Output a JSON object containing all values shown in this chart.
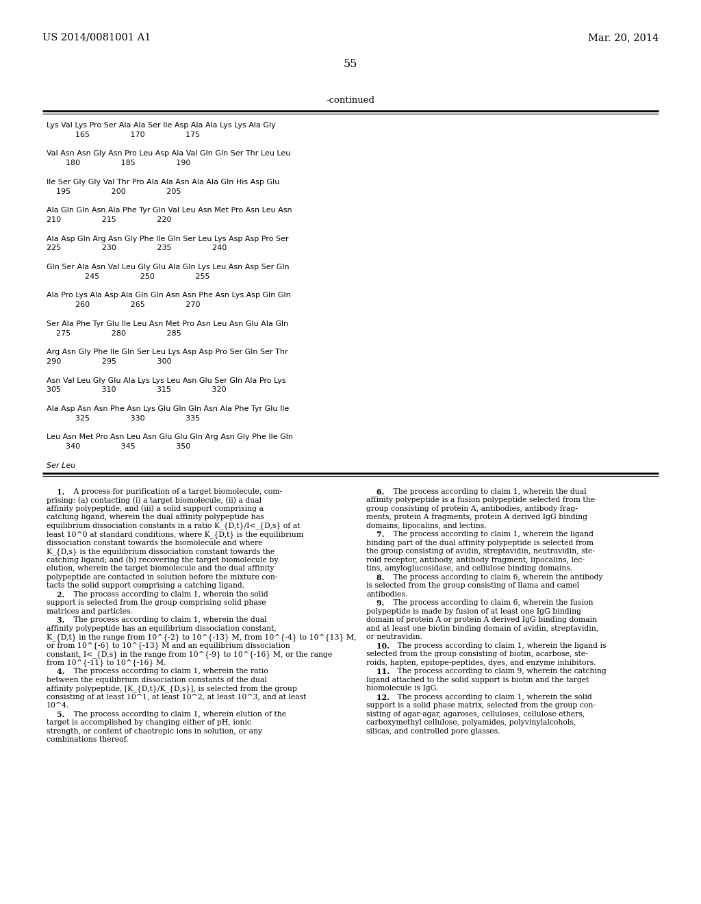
{
  "header_left": "US 2014/0081001 A1",
  "header_right": "Mar. 20, 2014",
  "page_number": "55",
  "continued_label": "-continued",
  "background_color": "#ffffff",
  "text_color": "#000000",
  "sequence_data": [
    [
      "Lys Val Lys Pro Ser Ala Ala Ser Ile Asp Ala Ala Lys Lys Ala Gly",
      false
    ],
    [
      "            165                 170                 175",
      false
    ],
    [
      "",
      false
    ],
    [
      "Val Asn Asn Gly Asn Pro Leu Asp Ala Val Gln Gln Ser Thr Leu Leu",
      false
    ],
    [
      "        180                 185                 190",
      false
    ],
    [
      "",
      false
    ],
    [
      "Ile Ser Gly Gly Val Thr Pro Ala Ala Asn Ala Ala Gln His Asp Glu",
      false
    ],
    [
      "    195                 200                 205",
      false
    ],
    [
      "",
      false
    ],
    [
      "Ala Gln Gln Asn Ala Phe Tyr Gln Val Leu Asn Met Pro Asn Leu Asn",
      false
    ],
    [
      "210                 215                 220",
      false
    ],
    [
      "",
      false
    ],
    [
      "Ala Asp Gln Arg Asn Gly Phe Ile Gln Ser Leu Lys Asp Asp Pro Ser",
      false
    ],
    [
      "225                 230                 235                 240",
      false
    ],
    [
      "",
      false
    ],
    [
      "Gln Ser Ala Asn Val Leu Gly Glu Ala Gln Lys Leu Asn Asp Ser Gln",
      false
    ],
    [
      "                245                 250                 255",
      false
    ],
    [
      "",
      false
    ],
    [
      "Ala Pro Lys Ala Asp Ala Gln Gln Asn Asn Phe Asn Lys Asp Gln Gln",
      false
    ],
    [
      "            260                 265                 270",
      false
    ],
    [
      "",
      false
    ],
    [
      "Ser Ala Phe Tyr Glu Ile Leu Asn Met Pro Asn Leu Asn Glu Ala Gln",
      false
    ],
    [
      "    275                 280                 285",
      false
    ],
    [
      "",
      false
    ],
    [
      "Arg Asn Gly Phe Ile Gln Ser Leu Lys Asp Asp Pro Ser Gln Ser Thr",
      false
    ],
    [
      "290                 295                 300",
      false
    ],
    [
      "",
      false
    ],
    [
      "Asn Val Leu Gly Glu Ala Lys Lys Leu Asn Glu Ser Gln Ala Pro Lys",
      false
    ],
    [
      "305                 310                 315                 320",
      false
    ],
    [
      "",
      false
    ],
    [
      "Ala Asp Asn Asn Phe Asn Lys Glu Gln Gln Asn Ala Phe Tyr Glu Ile",
      false
    ],
    [
      "            325                 330                 335",
      false
    ],
    [
      "",
      false
    ],
    [
      "Leu Asn Met Pro Asn Leu Asn Glu Glu Gln Arg Asn Gly Phe Ile Gln",
      false
    ],
    [
      "        340                 345                 350",
      false
    ],
    [
      "",
      false
    ],
    [
      "Ser Leu",
      true
    ]
  ],
  "claims_col1": [
    "    1. A process for purification of a target biomolecule, com-",
    "prising: (a) contacting (i) a target biomolecule, (ii) a dual",
    "affinity polypeptide, and (iii) a solid support comprising a",
    "catching ligand, wherein the dual affinity polypeptide has",
    "equilibrium dissociation constants in a ratio K_{D,t}/I<_{D,s} of at",
    "least 10^0 at standard conditions, where K_{D,t} is the equilibrium",
    "dissociation constant towards the biomolecule and where",
    "K_{D,s} is the equilibrium dissociation constant towards the",
    "catching ligand; and (b) recovering the target biomolecule by",
    "elution, wherein the target biomolecule and the dual affinity",
    "polypeptide are contacted in solution before the mixture con-",
    "tacts the solid support comprising a catching ligand.",
    "    2. The process according to claim 1, wherein the solid",
    "support is selected from the group comprising solid phase",
    "matrices and particles.",
    "    3. The process according to claim 1, wherein the dual",
    "affinity polypeptide has an equilibrium dissociation constant,",
    "K_{D,t} in the range from 10^{-2} to 10^{-13} M, from 10^{-4} to 10^{13} M,",
    "or from 10^{-6} to 10^{-13} M and an equilibrium dissociation",
    "constant, I<_{D,s} in the range from 10^{-9} to 10^{-16} M, or the range",
    "from 10^{-11} to 10^{-16} M.",
    "    4. The process according to claim 1, wherein the ratio",
    "between the equilibrium dissociation constants of the dual",
    "affinity polypeptide, [K_{D,t}/K_{D,s}], is selected from the group",
    "consisting of at least 10^1, at least 10^2, at least 10^3, and at least",
    "10^4.",
    "    5. The process according to claim 1, wherein elution of the",
    "target is accomplished by changing either of pH, ionic",
    "strength, or content of chaotropic ions in solution, or any",
    "combinations thereof."
  ],
  "claims_col2": [
    "    6. The process according to claim 1, wherein the dual",
    "affinity polypeptide is a fusion polypeptide selected from the",
    "group consisting of protein A, antibodies, antibody frag-",
    "ments, protein A fragments, protein A derived IgG binding",
    "domains, lipocalins, and lectins.",
    "    7. The process according to claim 1, wherein the ligand",
    "binding part of the dual affinity polypeptide is selected from",
    "the group consisting of avidin, streptavidin, neutravidin, ste-",
    "roid receptor, antibody, antibody fragment, lipocalins, lec-",
    "tins, amyloglucosidase, and cellulose binding domains.",
    "    8. The process according to claim 6, wherein the antibody",
    "is selected from the group consisting of llama and camel",
    "antibodies.",
    "    9. The process according to claim 6, wherein the fusion",
    "polypeptide is made by fusion of at least one IgG binding",
    "domain of protein A or protein A derived IgG binding domain",
    "and at least one biotin binding domain of avidin, streptavidin,",
    "or neutravidin.",
    "    10. The process according to claim 1, wherein the ligand is",
    "selected from the group consisting of biotin, acarbose, ste-",
    "roids, hapten, epitope-peptides, dyes, and enzyme inhibitors.",
    "    11. The process according to claim 9, wherein the catching",
    "ligand attached to the solid support is biotin and the target",
    "biomolecule is IgG.",
    "    12. The process according to claim 1, wherein the solid",
    "support is a solid phase matrix, selected from the group con-",
    "sisting of agar-agar, agaroses, celluloses, cellulose ethers,",
    "carboxymethyl cellulose, polyamides, polyvinylalcohols,",
    "silicas, and controlled pore glasses."
  ]
}
